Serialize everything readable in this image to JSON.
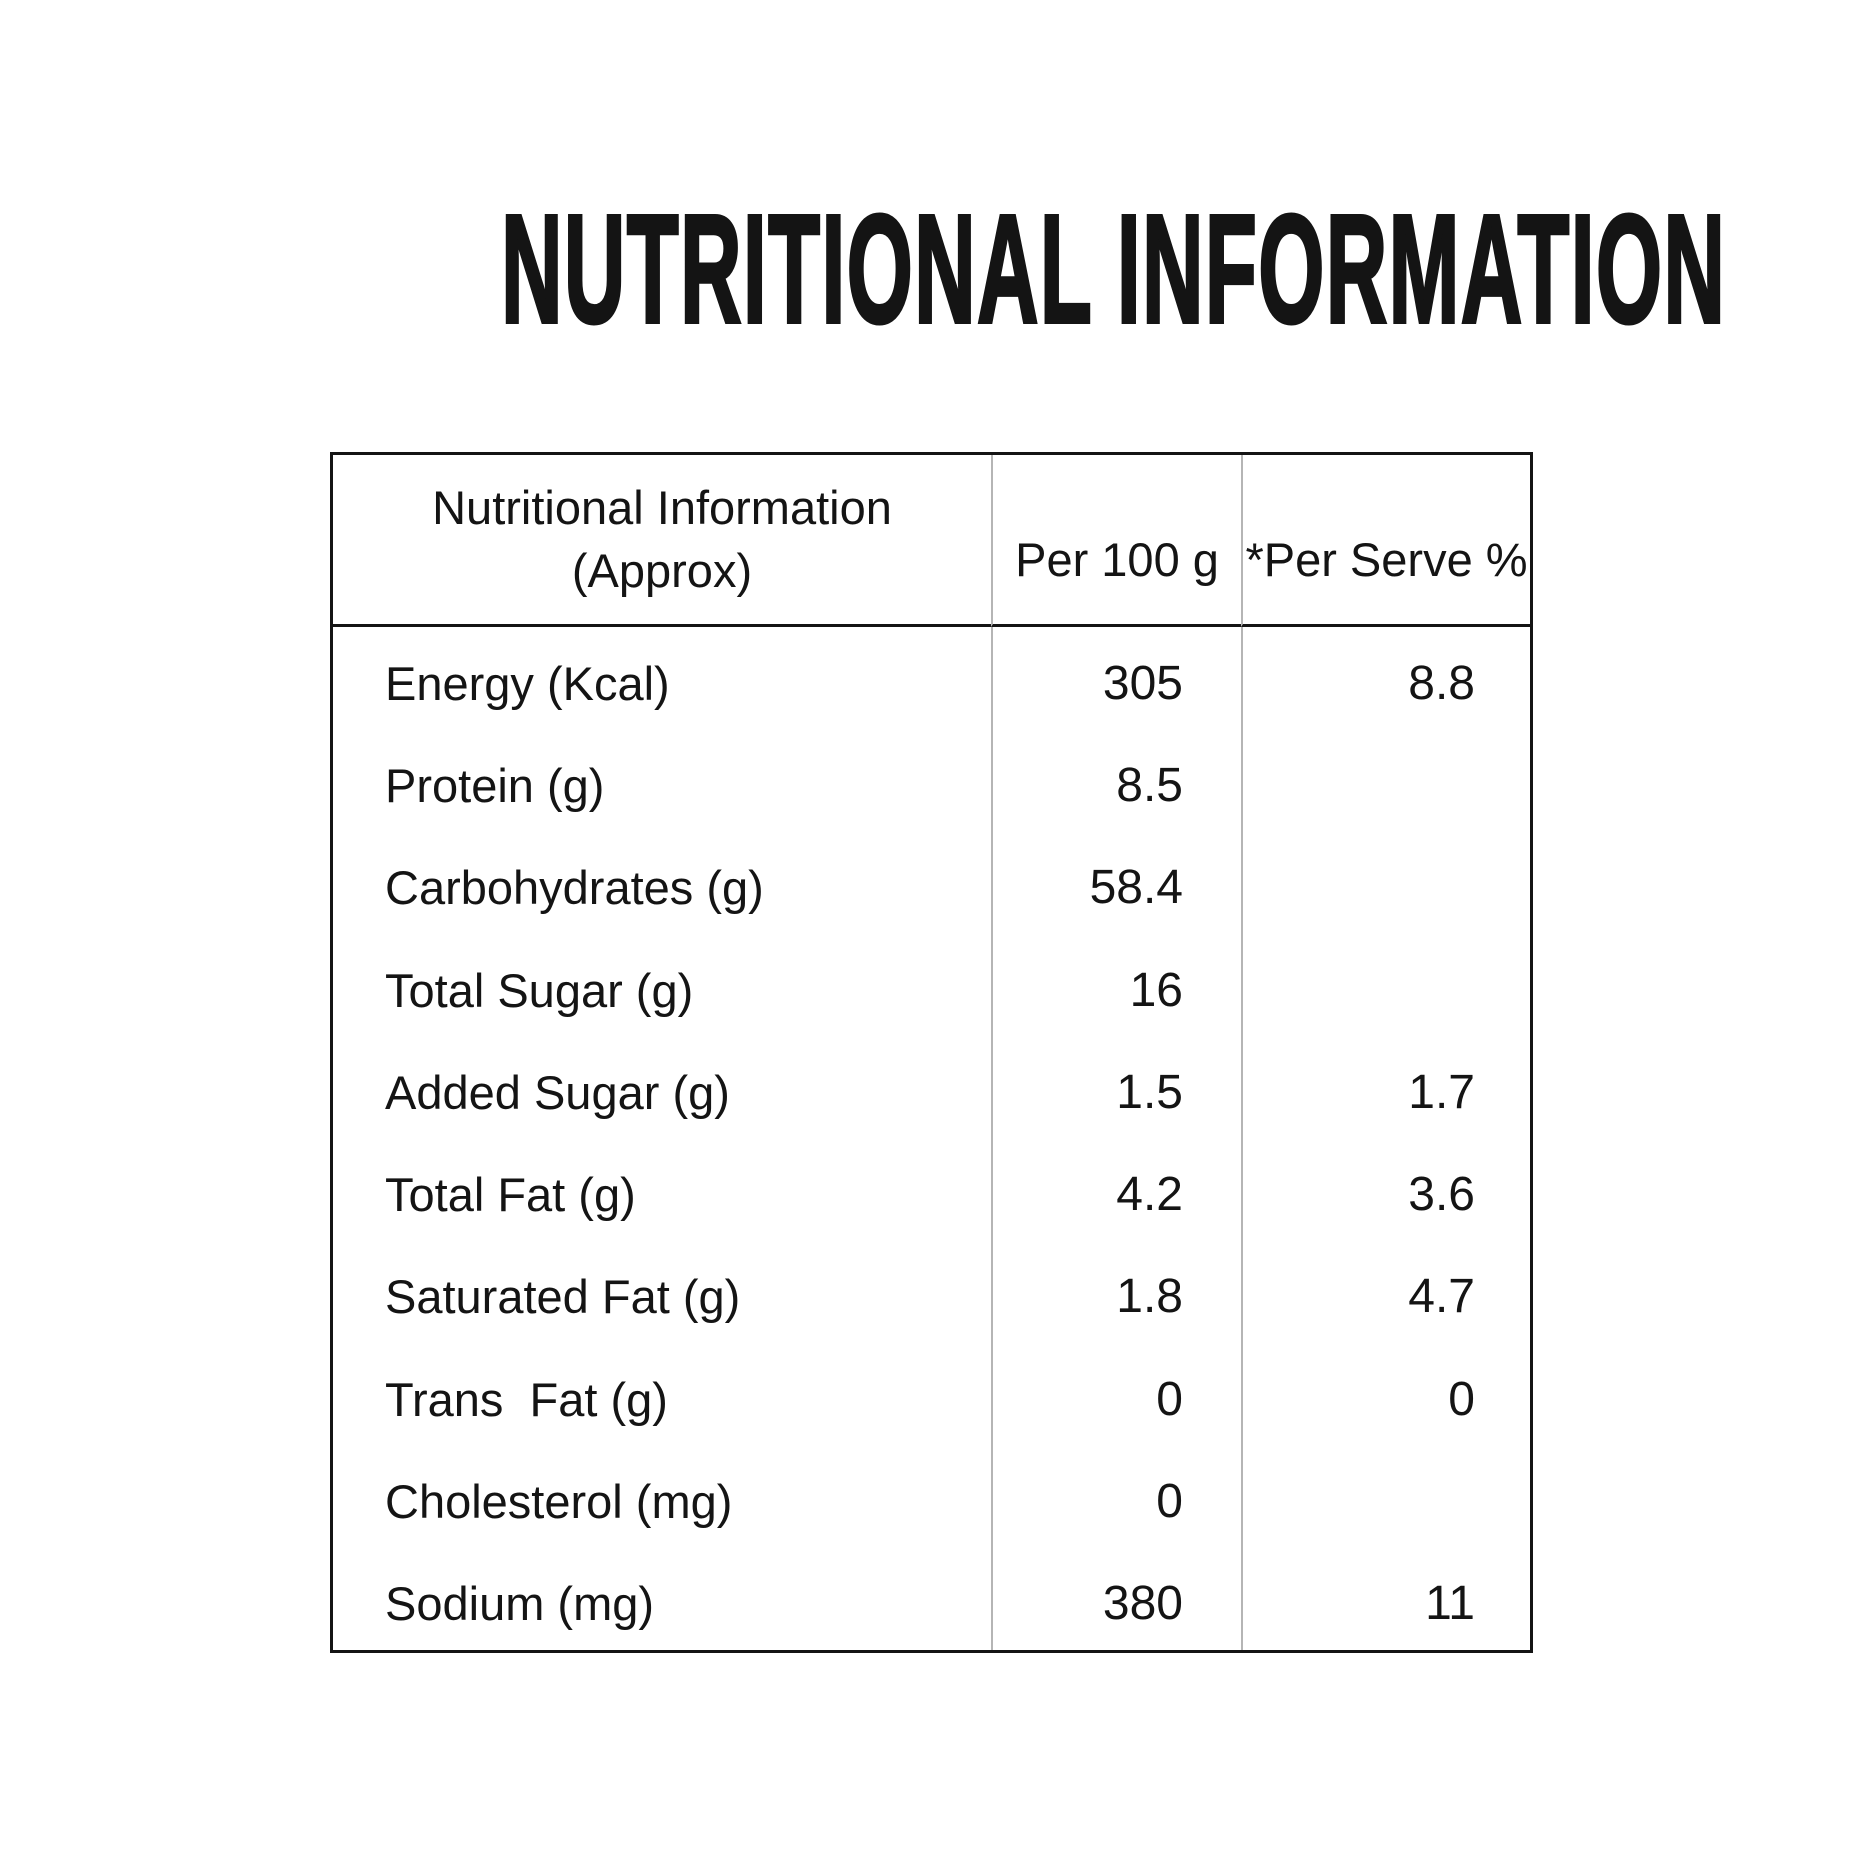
{
  "title": "NUTRITIONAL INFORMATION",
  "table": {
    "header": {
      "col1": "Nutritional Information\n(Approx)",
      "col2": "Per 100 g",
      "col3": "*Per Serve %"
    },
    "rows": [
      {
        "label": "Energy (Kcal)",
        "per100g": "305",
        "perServe": "8.8"
      },
      {
        "label": "Protein (g)",
        "per100g": "8.5",
        "perServe": ""
      },
      {
        "label": "Carbohydrates (g)",
        "per100g": "58.4",
        "perServe": ""
      },
      {
        "label": "Total Sugar (g)",
        "per100g": "16",
        "perServe": ""
      },
      {
        "label": "Added Sugar (g)",
        "per100g": "1.5",
        "perServe": "1.7"
      },
      {
        "label": "Total Fat (g)",
        "per100g": "4.2",
        "perServe": "3.6"
      },
      {
        "label": "Saturated Fat (g)",
        "per100g": "1.8",
        "perServe": "4.7"
      },
      {
        "label": "Trans  Fat (g)",
        "per100g": "0",
        "perServe": "0"
      },
      {
        "label": "Cholesterol (mg)",
        "per100g": "0",
        "perServe": ""
      },
      {
        "label": "Sodium (mg)",
        "per100g": "380",
        "perServe": "11"
      }
    ]
  },
  "colors": {
    "text": "#141414",
    "table_border": "#141414",
    "column_separator": "#b5b5b5",
    "background": "#ffffff"
  }
}
